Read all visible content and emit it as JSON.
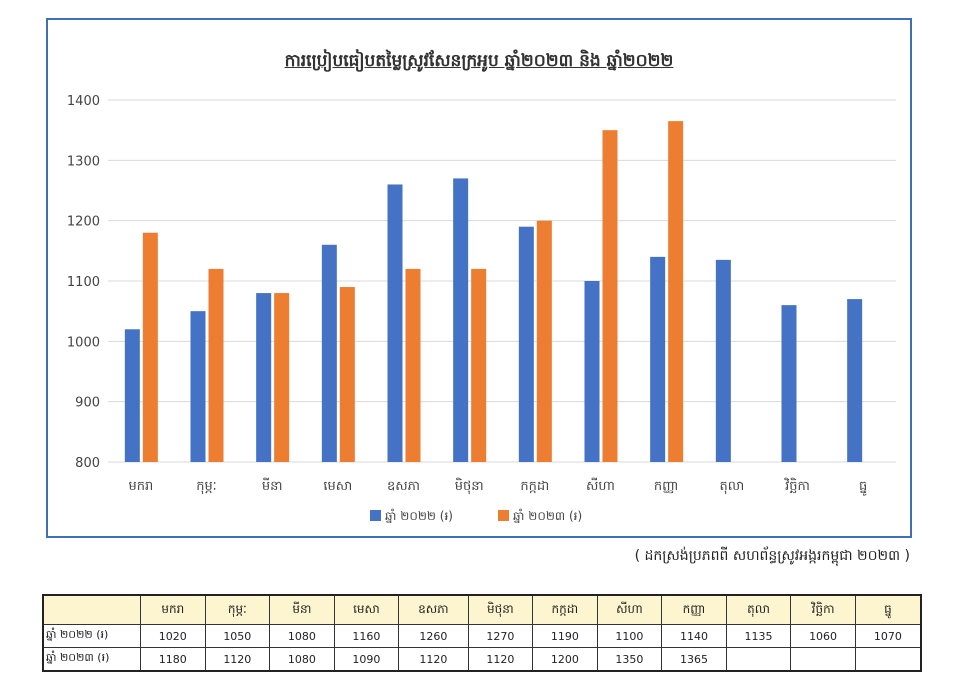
{
  "chart_data": {
    "type": "bar",
    "title": "ការប្រៀបធៀបតម្លៃស្រូវសែនក្រអូប ឆ្នាំ២០២៣ និង ឆ្នាំ២០២២",
    "categories": [
      "មករា",
      "កុម្ភៈ",
      "មីនា",
      "មេសា",
      "ឧសភា",
      "មិថុនា",
      "កក្កដា",
      "សីហា",
      "កញ្ញា",
      "តុលា",
      "វិច្ឆិកា",
      "ធ្នូ"
    ],
    "series": [
      {
        "name": "ឆ្នាំ ២០២២ (៛)",
        "color": "#4472c4",
        "values": [
          1020,
          1050,
          1080,
          1160,
          1260,
          1270,
          1190,
          1100,
          1140,
          1135,
          1060,
          1070
        ]
      },
      {
        "name": "ឆ្នាំ ២០២៣ (៛)",
        "color": "#ed7d31",
        "values": [
          1180,
          1120,
          1080,
          1090,
          1120,
          1120,
          1200,
          1350,
          1365,
          null,
          null,
          null
        ]
      }
    ],
    "ylim": [
      800,
      1400
    ],
    "yticks": [
      800,
      900,
      1000,
      1100,
      1200,
      1300,
      1400
    ],
    "grid": true,
    "legend": "bottom"
  },
  "source_note": "( ដកស្រង់ប្រភពពី សហព័ន្ធស្រូវអង្ករកម្ពុជា ២០២៣ )",
  "table": {
    "header": [
      "",
      "មករា",
      "កុម្ភៈ",
      "មីនា",
      "មេសា",
      "ឧសភា",
      "មិថុនា",
      "កក្កដា",
      "សីហា",
      "កញ្ញា",
      "តុលា",
      "វិច្ឆិកា",
      "ធ្នូ"
    ],
    "rows": [
      [
        "ឆ្នាំ ២០២២ (៛)",
        "1020",
        "1050",
        "1080",
        "1160",
        "1260",
        "1270",
        "1190",
        "1100",
        "1140",
        "1135",
        "1060",
        "1070"
      ],
      [
        "ឆ្នាំ ២០២៣ (៛)",
        "1180",
        "1120",
        "1080",
        "1090",
        "1120",
        "1120",
        "1200",
        "1350",
        "1365",
        "",
        "",
        ""
      ]
    ]
  }
}
